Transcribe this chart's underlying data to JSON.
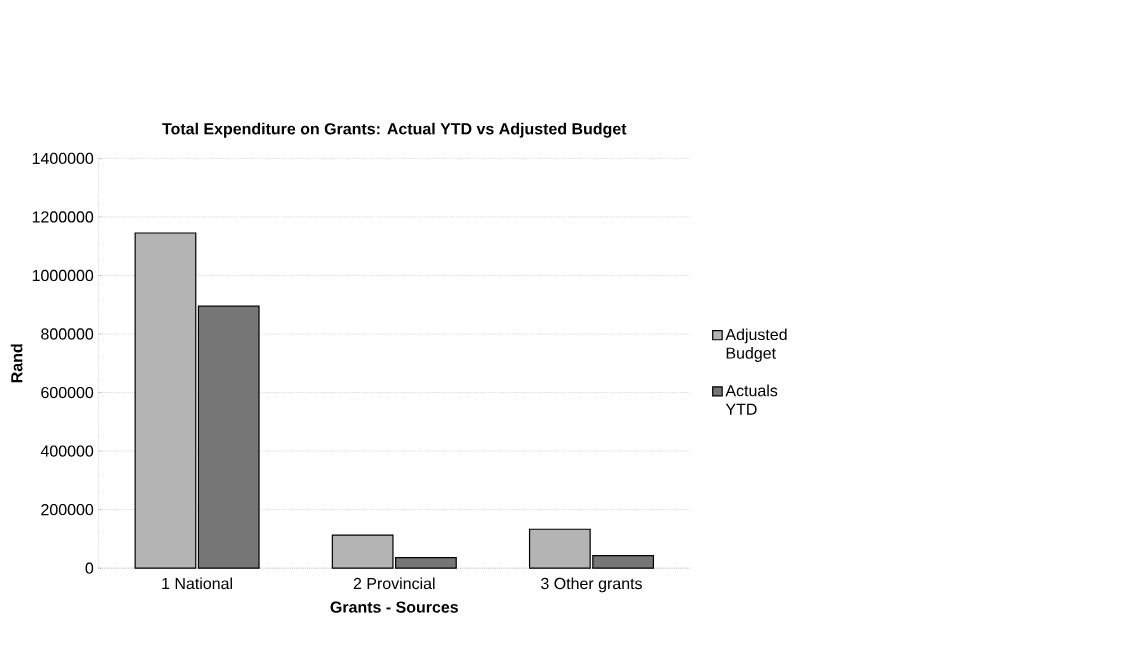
{
  "chart_data": {
    "type": "bar",
    "title": "Total Expenditure on Grants: Actual YTD vs Adjusted Budget",
    "xlabel": "Grants - Sources",
    "ylabel": "Rand",
    "categories": [
      "1 National",
      "2 Provincial",
      "3 Other grants"
    ],
    "series": [
      {
        "name": "Adjusted Budget",
        "color": "#b4b4b4",
        "values": [
          1145000,
          113000,
          133000
        ]
      },
      {
        "name": "Actuals YTD",
        "color": "#767676",
        "values": [
          895000,
          36000,
          43000
        ]
      }
    ],
    "ylim": [
      0,
      1400000
    ],
    "yticks": [
      0,
      200000,
      400000,
      600000,
      800000,
      1000000,
      1200000,
      1400000
    ],
    "grid": "y",
    "legend": "right"
  }
}
